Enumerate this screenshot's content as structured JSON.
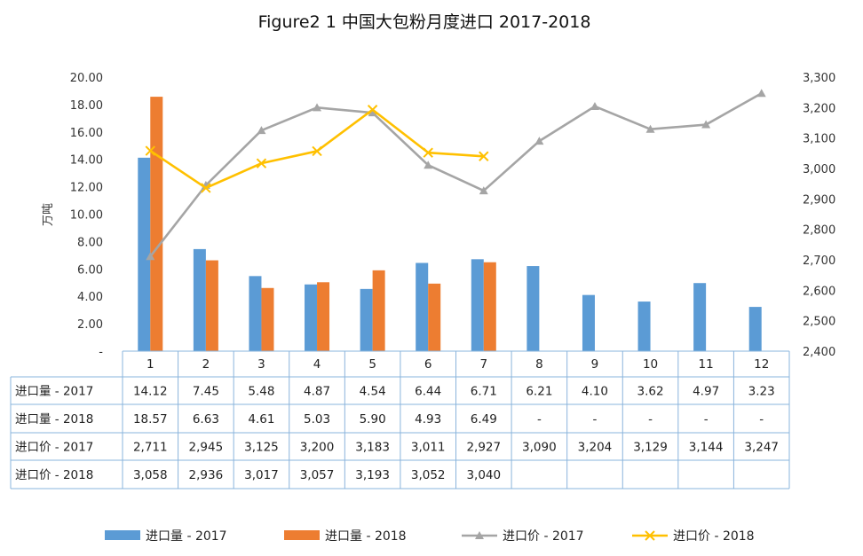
{
  "chart_data": {
    "type": "bar+line",
    "title": "Figure2 1 中国大包粉月度进口 2017-2018",
    "ylabel": "万吨",
    "y_left": {
      "range": [
        0,
        20
      ],
      "ticks": [
        "-",
        "2.00",
        "4.00",
        "6.00",
        "8.00",
        "10.00",
        "12.00",
        "14.00",
        "16.00",
        "18.00",
        "20.00"
      ]
    },
    "y_right": {
      "range": [
        2400,
        3300
      ],
      "ticks": [
        "2,400",
        "2,500",
        "2,600",
        "2,700",
        "2,800",
        "2,900",
        "3,000",
        "3,100",
        "3,200",
        "3,300"
      ]
    },
    "categories": [
      "1",
      "2",
      "3",
      "4",
      "5",
      "6",
      "7",
      "8",
      "9",
      "10",
      "11",
      "12"
    ],
    "series": [
      {
        "name": "进口量   - 2017",
        "kind": "bar",
        "axis": "left",
        "color": "#5B9BD5",
        "values": [
          14.12,
          7.45,
          5.48,
          4.87,
          4.54,
          6.44,
          6.71,
          6.21,
          4.1,
          3.62,
          4.97,
          3.23
        ],
        "labels": [
          "14.12",
          "7.45",
          "5.48",
          "4.87",
          "4.54",
          "6.44",
          "6.71",
          "6.21",
          "4.10",
          "3.62",
          "4.97",
          "3.23"
        ]
      },
      {
        "name": "进口量   - 2018",
        "kind": "bar",
        "axis": "left",
        "color": "#ED7D31",
        "values": [
          18.57,
          6.63,
          4.61,
          5.03,
          5.9,
          4.93,
          6.49,
          null,
          null,
          null,
          null,
          null
        ],
        "labels": [
          "18.57",
          "6.63",
          "4.61",
          "5.03",
          "5.90",
          "4.93",
          "6.49",
          "-",
          "-",
          "-",
          "-",
          "-"
        ]
      },
      {
        "name": "进口价 - 2017",
        "kind": "line",
        "axis": "right",
        "color": "#A5A5A5",
        "marker": "triangle",
        "values": [
          2711,
          2945,
          3125,
          3200,
          3183,
          3011,
          2927,
          3090,
          3204,
          3129,
          3144,
          3247
        ],
        "labels": [
          "2,711",
          "2,945",
          "3,125",
          "3,200",
          "3,183",
          "3,011",
          "2,927",
          "3,090",
          "3,204",
          "3,129",
          "3,144",
          "3,247"
        ]
      },
      {
        "name": "进口价 - 2018",
        "kind": "line",
        "axis": "right",
        "color": "#FFC000",
        "marker": "x",
        "values": [
          3058,
          2936,
          3017,
          3057,
          3193,
          3052,
          3040,
          null,
          null,
          null,
          null,
          null
        ],
        "labels": [
          "3,058",
          "2,936",
          "3,017",
          "3,057",
          "3,193",
          "3,052",
          "3,040",
          "",
          "",
          "",
          "",
          ""
        ]
      }
    ],
    "legend": {
      "position": "bottom",
      "labels": [
        "进口量   - 2017",
        "进口量   - 2018",
        "进口价 - 2017",
        "进口价 - 2018"
      ]
    },
    "table": {
      "row_labels": [
        "进口量   - 2017",
        "进口量   - 2018",
        "进口价 - 2017",
        "进口价 - 2018"
      ]
    }
  }
}
